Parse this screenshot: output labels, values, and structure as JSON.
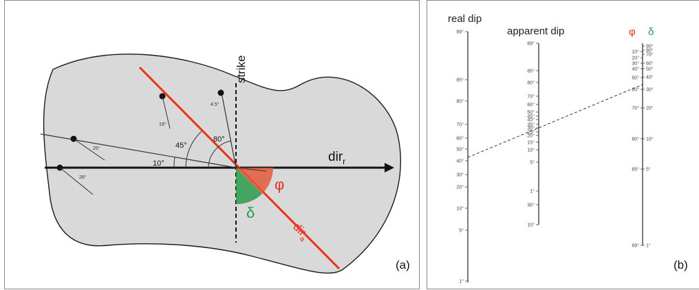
{
  "panel_a": {
    "strike_label": "strike",
    "dir_r_main": "dir",
    "dir_r_sub": "r",
    "dir_a_main": "dir",
    "dir_a_sub": "a",
    "phi_symbol": "φ",
    "delta_symbol": "δ",
    "angle_10": "10°",
    "angle_45": "45°",
    "angle_80": "80°",
    "dip_45": "4.5°",
    "dip_19": "19°",
    "dip_25": "25°",
    "dip_26": "26°",
    "panel_label": "(a)",
    "colors": {
      "phi": "#e25b3a",
      "delta": "#2a9a4a",
      "dir_a_line": "#e8301c",
      "shape": "#d9d9d9"
    }
  },
  "panel_b": {
    "real_dip_title": "real dip",
    "apparent_dip_title": "apparent dip",
    "phi_symbol": "φ",
    "delta_symbol": "δ",
    "panel_label": "(b)",
    "real_dip_ticks": [
      "89°",
      "85°",
      "80°",
      "70°",
      "60°",
      "50°",
      "40°",
      "30°",
      "20°",
      "10°",
      "5°",
      "1°"
    ],
    "apparent_dip_ticks": [
      "89°",
      "85°",
      "80°",
      "70°",
      "60°",
      "50°",
      "45°",
      "40°",
      "35°",
      "30°",
      "25°",
      "20°",
      "15°",
      "10°",
      "5°",
      "1°",
      "30°",
      "10°"
    ],
    "phi_ticks": [
      "10°",
      "20°",
      "30°",
      "40°",
      "50°",
      "60°",
      "70°",
      "80°",
      "85°",
      "89°"
    ],
    "delta_ticks": [
      "90°",
      "80°",
      "70°",
      "60°",
      "50°",
      "40°",
      "30°",
      "20°",
      "10°",
      "5°",
      "1°"
    ]
  }
}
